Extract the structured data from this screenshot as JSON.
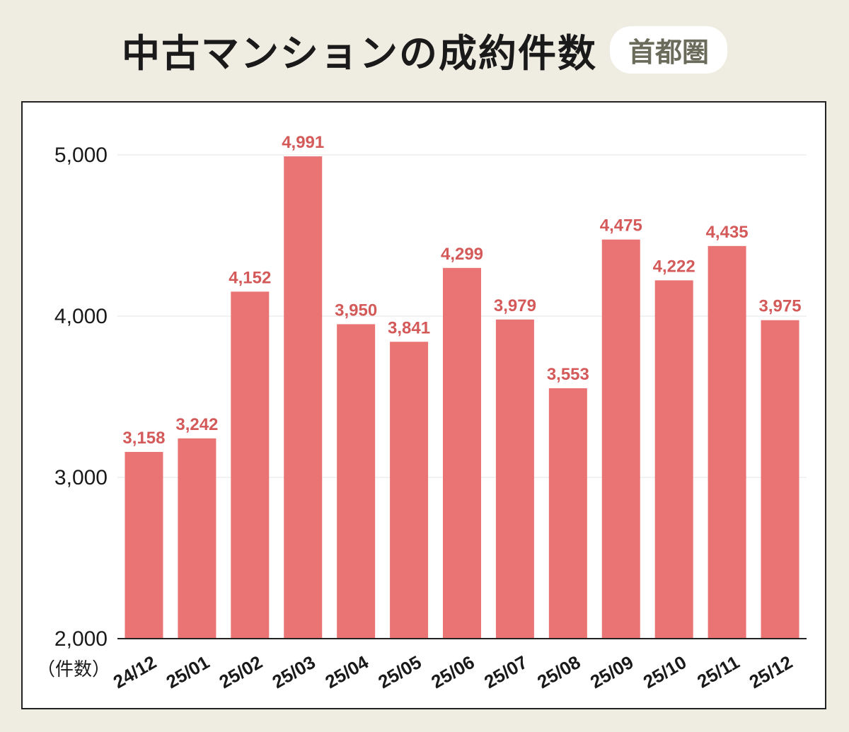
{
  "header": {
    "title": "中古マンションの成約件数",
    "badge": "首都圏"
  },
  "chart_data": {
    "type": "bar",
    "categories": [
      "24/12",
      "25/01",
      "25/02",
      "25/03",
      "25/04",
      "25/05",
      "25/06",
      "25/07",
      "25/08",
      "25/09",
      "25/10",
      "25/11",
      "25/12"
    ],
    "values": [
      3158,
      3242,
      4152,
      4991,
      3950,
      3841,
      4299,
      3979,
      3553,
      4475,
      4222,
      4435,
      3975
    ],
    "value_labels": [
      "3,158",
      "3,242",
      "4,152",
      "4,991",
      "3,950",
      "3,841",
      "4,299",
      "3,979",
      "3,553",
      "4,475",
      "4,222",
      "4,435",
      "3,975"
    ],
    "ylim": [
      2000,
      5000
    ],
    "yticks": [
      2000,
      3000,
      4000,
      5000
    ],
    "ytick_labels": [
      "2,000",
      "3,000",
      "4,000",
      "5,000"
    ],
    "ylabel": "（件数）",
    "grid": true,
    "colors": {
      "bar": "#ea7474",
      "value_label": "#d45a5a",
      "grid": "#e6e6e6",
      "axis": "#222222"
    }
  }
}
